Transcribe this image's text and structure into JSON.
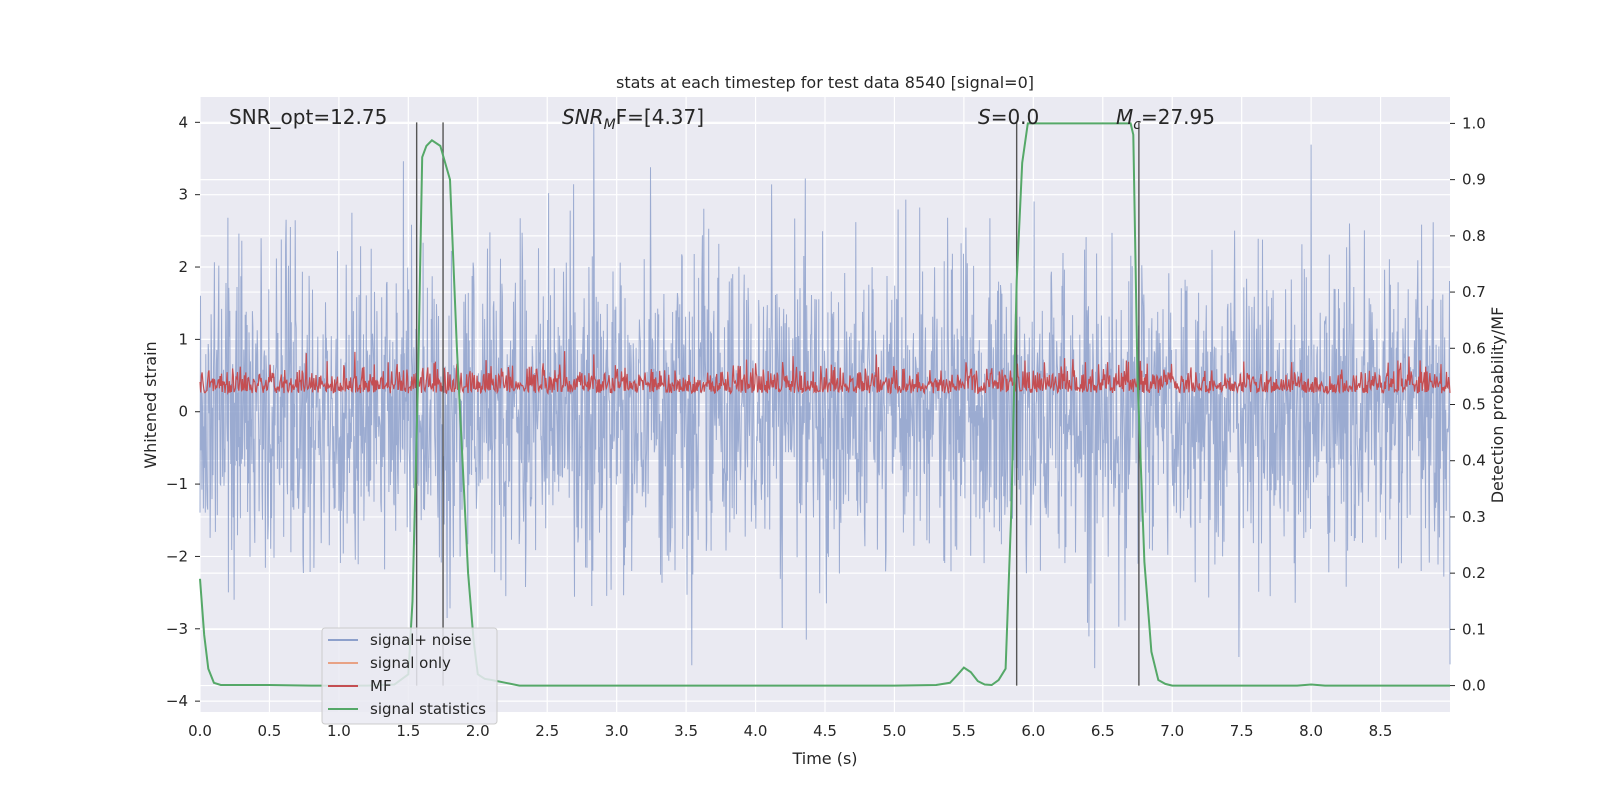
{
  "chart_data": {
    "type": "line",
    "title": "stats at each timestep for test data 8540 [signal=0]",
    "xlabel": "Time (s)",
    "ylabel": "Whitened strain",
    "y2label": "Detection probability/MF",
    "xlim": [
      0.0,
      9.0
    ],
    "ylim": [
      -4.15,
      4.35
    ],
    "y2lim": [
      -0.047,
      1.047
    ],
    "xticks": [
      0.0,
      0.5,
      1.0,
      1.5,
      2.0,
      2.5,
      3.0,
      3.5,
      4.0,
      4.5,
      5.0,
      5.5,
      6.0,
      6.5,
      7.0,
      7.5,
      8.0,
      8.5
    ],
    "xtick_labels": [
      "0.0",
      "0.5",
      "1.0",
      "1.5",
      "2.0",
      "2.5",
      "3.0",
      "3.5",
      "4.0",
      "4.5",
      "5.0",
      "5.5",
      "6.0",
      "6.5",
      "7.0",
      "7.5",
      "8.0",
      "8.5"
    ],
    "yticks": [
      -4,
      -3,
      -2,
      -1,
      0,
      1,
      2,
      3,
      4
    ],
    "ytick_labels": [
      "−4",
      "−3",
      "−2",
      "−1",
      "0",
      "1",
      "2",
      "3",
      "4"
    ],
    "y2ticks": [
      0.0,
      0.1,
      0.2,
      0.3,
      0.4,
      0.5,
      0.6,
      0.7,
      0.8,
      0.9,
      1.0
    ],
    "y2tick_labels": [
      "0.0",
      "0.1",
      "0.2",
      "0.3",
      "0.4",
      "0.5",
      "0.6",
      "0.7",
      "0.8",
      "0.9",
      "1.0"
    ],
    "grid": true,
    "legend_position": "lower-left",
    "series": [
      {
        "name": "signal+ noise",
        "color": "#8da0cb",
        "axis": "left",
        "description": "whitened noise fluctuating roughly between -3.8 and 4.0",
        "envelope": {
          "low": -3.8,
          "high": 4.0
        }
      },
      {
        "name": "signal only",
        "color": "#e8a285",
        "axis": "left",
        "values": []
      },
      {
        "name": "MF",
        "color": "#c44e52",
        "axis": "right",
        "description": "matched-filter output fluctuating roughly between 0.5 and 0.61",
        "envelope": {
          "low": 0.5,
          "high": 0.61
        }
      },
      {
        "name": "signal statistics",
        "color": "#55a868",
        "axis": "right",
        "x": [
          0.0,
          0.03,
          0.06,
          0.1,
          0.15,
          0.2,
          0.5,
          0.8,
          1.0,
          1.2,
          1.4,
          1.5,
          1.53,
          1.57,
          1.6,
          1.63,
          1.67,
          1.73,
          1.8,
          1.85,
          1.9,
          1.93,
          1.97,
          2.0,
          2.05,
          2.1,
          2.2,
          2.3,
          2.5,
          3.0,
          4.0,
          5.0,
          5.3,
          5.4,
          5.45,
          5.5,
          5.55,
          5.6,
          5.65,
          5.7,
          5.75,
          5.8,
          5.84,
          5.88,
          5.92,
          5.96,
          6.0,
          6.5,
          6.7,
          6.72,
          6.75,
          6.8,
          6.85,
          6.9,
          6.95,
          7.0,
          7.5,
          7.9,
          8.0,
          8.1,
          8.5,
          9.0
        ],
        "y": [
          0.19,
          0.09,
          0.03,
          0.005,
          0.001,
          0.001,
          0.001,
          0.0,
          0.0,
          0.0,
          0.002,
          0.02,
          0.15,
          0.55,
          0.94,
          0.96,
          0.97,
          0.96,
          0.9,
          0.6,
          0.35,
          0.2,
          0.08,
          0.02,
          0.012,
          0.01,
          0.005,
          0.0,
          0.0,
          0.0,
          0.0,
          0.0,
          0.001,
          0.005,
          0.018,
          0.032,
          0.024,
          0.008,
          0.002,
          0.001,
          0.01,
          0.03,
          0.3,
          0.72,
          0.93,
          1.0,
          1.0,
          1.0,
          1.0,
          0.98,
          0.55,
          0.22,
          0.06,
          0.01,
          0.003,
          0.0,
          0.0,
          0.0,
          0.002,
          0.0,
          0.0,
          0.0
        ]
      }
    ],
    "vertical_markers": {
      "color": "#555555",
      "x": [
        1.56,
        1.75,
        5.88,
        6.76
      ],
      "ymax": 4.0
    },
    "annotations": [
      {
        "id": "snr-opt",
        "text": "SNR_opt=12.75",
        "x": 0.2,
        "y": 4.0
      },
      {
        "id": "snr-mf",
        "text": "SNR_MF=[4.37]",
        "x": 2.6,
        "y": 4.0
      },
      {
        "id": "s-value",
        "text": "S=0.0",
        "x": 5.6,
        "y": 4.0
      },
      {
        "id": "mc-value",
        "text": "M_c=27.95",
        "x": 6.6,
        "y": 4.0
      }
    ]
  },
  "annotation_text": {
    "snr_opt": "SNR_opt=12.75",
    "snr_mf_base": "SNR",
    "snr_mf_sub": "M",
    "snr_mf_tail": "F=[4.37]",
    "s_base": "S",
    "s_tail": "=0.0",
    "mc_base": "M",
    "mc_sub": "c",
    "mc_tail": "=27.95"
  },
  "legend": {
    "items": [
      {
        "label": "signal+ noise",
        "color": "#8da0cb"
      },
      {
        "label": "signal only",
        "color": "#e8a285"
      },
      {
        "label": "MF",
        "color": "#c44e52"
      },
      {
        "label": "signal statistics",
        "color": "#55a868"
      }
    ]
  },
  "colors": {
    "plot_background": "#eaeaf2",
    "grid": "#ffffff",
    "text": "#262626"
  }
}
